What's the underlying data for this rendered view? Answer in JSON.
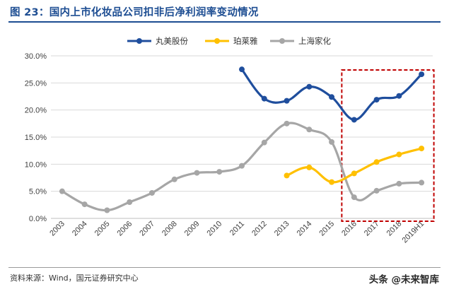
{
  "figure_title": "图 23：国内上市化妆品公司扣非后净利润率变动情况",
  "source_text": "资料来源：Wind，国元证券研究中心",
  "watermark_text": "头条 @未来智库",
  "colors": {
    "title": "#1d4d92",
    "highlight_box": "#c00000",
    "grid": "#d9d9d9"
  },
  "chart_data": {
    "type": "line",
    "categories": [
      "2003",
      "2004",
      "2005",
      "2006",
      "2007",
      "2008",
      "2009",
      "2010",
      "2011",
      "2012",
      "2013",
      "2014",
      "2015",
      "2016",
      "2017",
      "2018",
      "2019H1"
    ],
    "y_ticks": [
      "0.0%",
      "5.0%",
      "10.0%",
      "15.0%",
      "20.0%",
      "25.0%",
      "30.0%"
    ],
    "ylim": [
      0,
      30
    ],
    "y_unit": "%",
    "grid": "horizontal",
    "legend_position": "top",
    "highlight_range": [
      "2016",
      "2019H1"
    ],
    "series": [
      {
        "name": "丸美股份",
        "color": "#1f4e9d",
        "values": [
          null,
          null,
          null,
          null,
          null,
          null,
          null,
          null,
          27.5,
          22.1,
          21.7,
          24.3,
          22.4,
          18.2,
          21.9,
          22.6,
          26.6
        ]
      },
      {
        "name": "珀莱雅",
        "color": "#ffc000",
        "values": [
          null,
          null,
          null,
          null,
          null,
          null,
          null,
          null,
          null,
          null,
          7.9,
          9.4,
          6.7,
          8.3,
          10.4,
          11.8,
          12.9
        ]
      },
      {
        "name": "上海家化",
        "color": "#a6a6a6",
        "values": [
          5.0,
          2.6,
          1.5,
          3.0,
          4.7,
          7.2,
          8.4,
          8.6,
          9.7,
          14.0,
          17.5,
          16.4,
          14.1,
          3.9,
          5.1,
          6.4,
          6.6
        ]
      }
    ]
  }
}
